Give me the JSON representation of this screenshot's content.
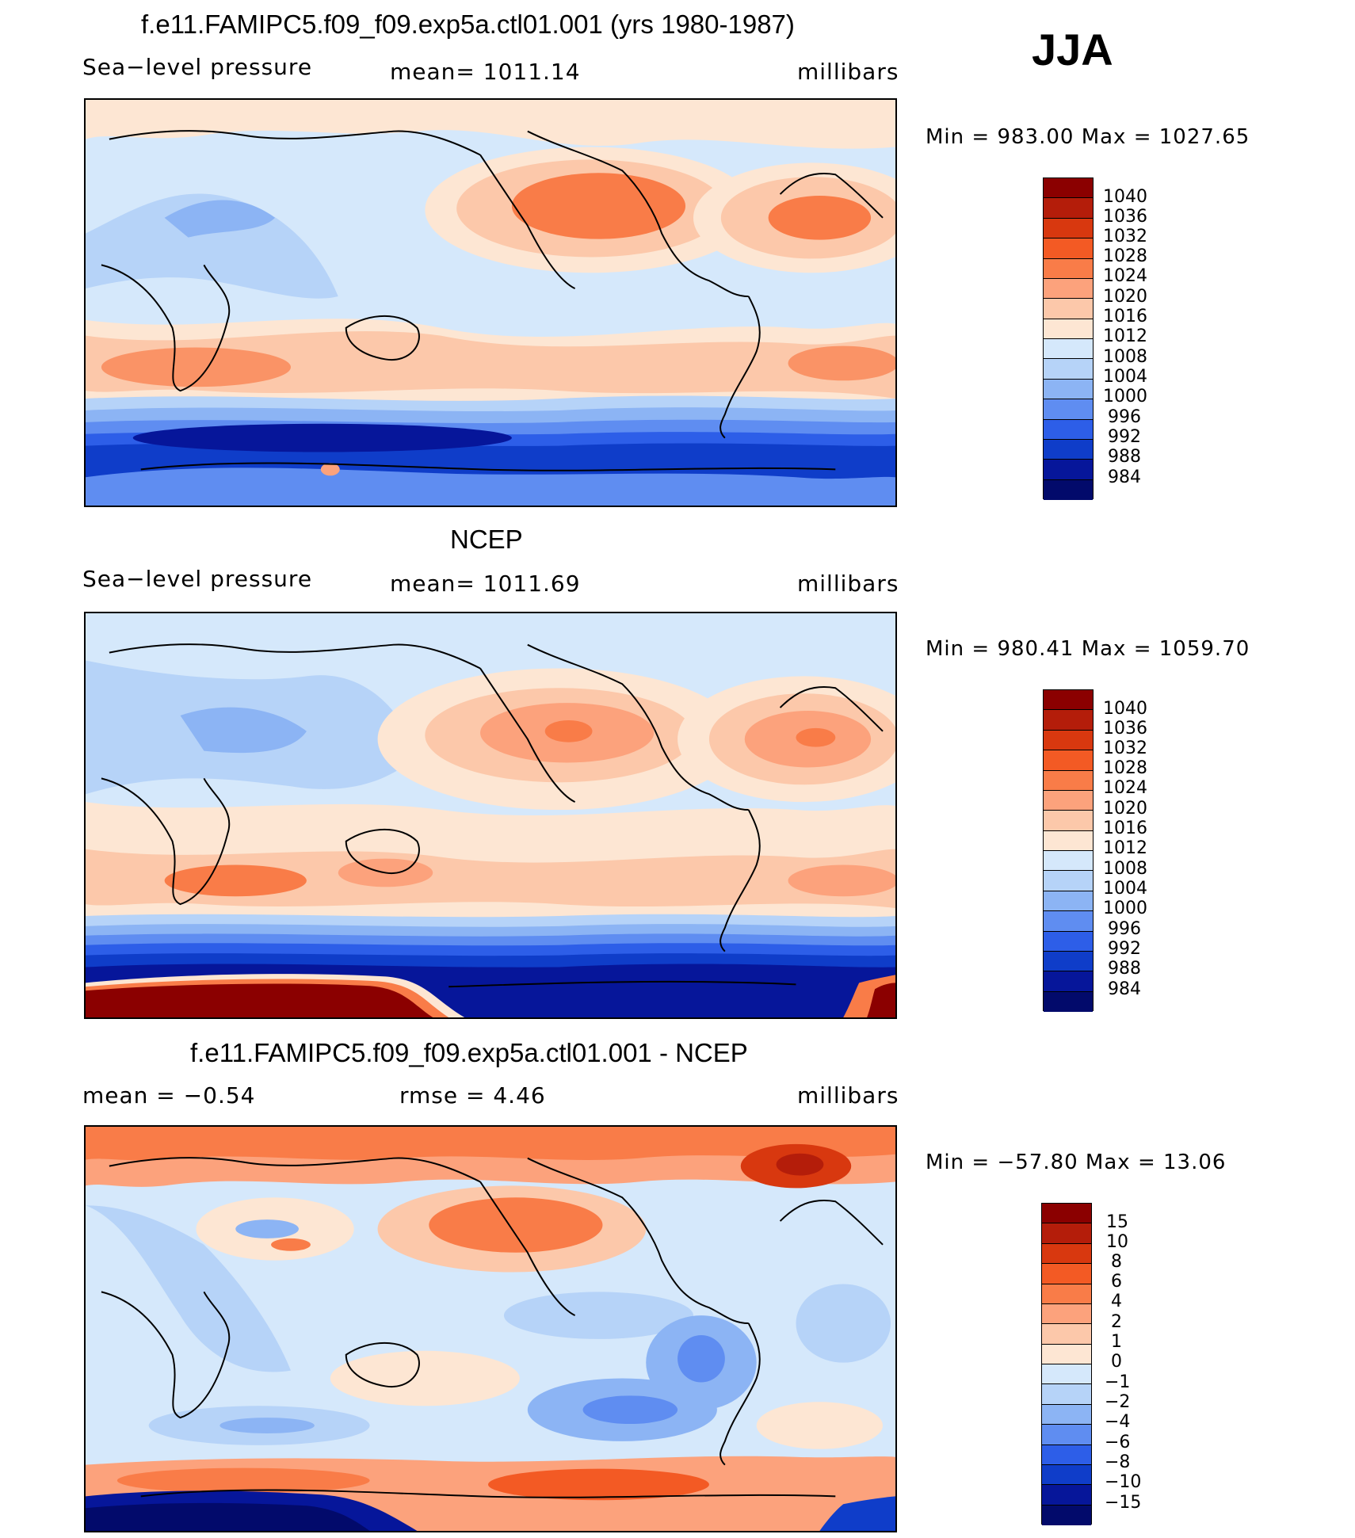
{
  "season": "JJA",
  "panels": [
    {
      "title": "f.e11.FAMIPC5.f09_f09.exp5a.ctl01.001 (yrs 1980-1987)",
      "left_label": "Sea−level pressure",
      "center_label": "mean=  1011.14",
      "right_label": "millibars",
      "minmax": "Min  =  983.00  Max  =  1027.65",
      "colorbar": {
        "labels": [
          "1040",
          "1036",
          "1032",
          "1028",
          "1024",
          "1020",
          "1016",
          "1012",
          "1008",
          "1004",
          "1000",
          "996",
          "992",
          "988",
          "984"
        ],
        "colors": [
          "#8b0000",
          "#b41d0a",
          "#d8380f",
          "#f35a24",
          "#f97c48",
          "#fca27c",
          "#fcc8aa",
          "#fde6d3",
          "#d5e8fb",
          "#b6d3f8",
          "#8cb4f4",
          "#5f8df1",
          "#2d5ee8",
          "#0f3dc9",
          "#06169a",
          "#020a6b"
        ]
      }
    },
    {
      "title": "NCEP",
      "left_label": "Sea−level pressure",
      "center_label": "mean=  1011.69",
      "right_label": "millibars",
      "minmax": "Min  =  980.41  Max  =  1059.70",
      "colorbar": {
        "labels": [
          "1040",
          "1036",
          "1032",
          "1028",
          "1024",
          "1020",
          "1016",
          "1012",
          "1008",
          "1004",
          "1000",
          "996",
          "992",
          "988",
          "984"
        ],
        "colors": [
          "#8b0000",
          "#b41d0a",
          "#d8380f",
          "#f35a24",
          "#f97c48",
          "#fca27c",
          "#fcc8aa",
          "#fde6d3",
          "#d5e8fb",
          "#b6d3f8",
          "#8cb4f4",
          "#5f8df1",
          "#2d5ee8",
          "#0f3dc9",
          "#06169a",
          "#020a6b"
        ]
      }
    },
    {
      "title": "f.e11.FAMIPC5.f09_f09.exp5a.ctl01.001 - NCEP",
      "left_label": "mean  =    −0.54",
      "center_label": "rmse  =     4.46",
      "right_label": "millibars",
      "minmax": "Min  = −57.80  Max  =    13.06",
      "colorbar": {
        "labels": [
          "15",
          "10",
          "8",
          "6",
          "4",
          "2",
          "1",
          "0",
          "−1",
          "−2",
          "−4",
          "−6",
          "−8",
          "−10",
          "−15"
        ],
        "colors": [
          "#8b0000",
          "#b41d0a",
          "#d8380f",
          "#f35a24",
          "#f97c48",
          "#fca27c",
          "#fcc8aa",
          "#fde6d3",
          "#d5e8fb",
          "#b6d3f8",
          "#8cb4f4",
          "#5f8df1",
          "#2d5ee8",
          "#0f3dc9",
          "#06169a",
          "#020a6b"
        ]
      }
    }
  ]
}
